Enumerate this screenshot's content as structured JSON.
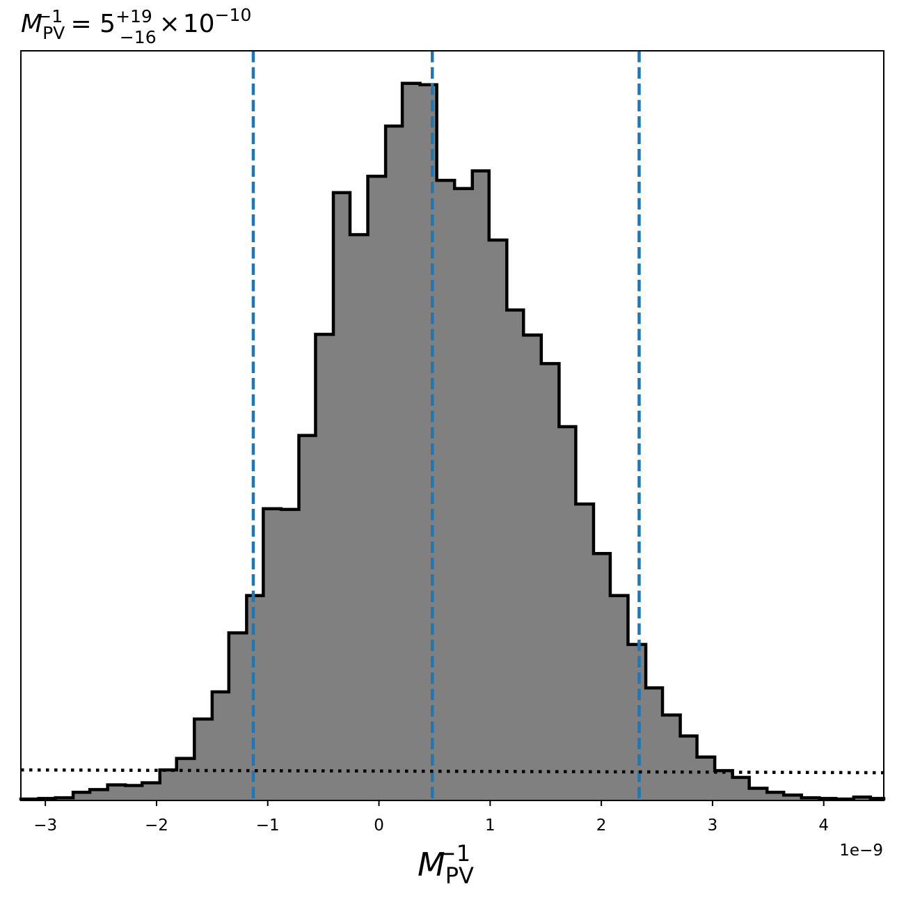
{
  "chart_data": {
    "type": "histogram",
    "title": {
      "lhs_symbol": "M",
      "lhs_sub": "PV",
      "lhs_sup": "−1",
      "equals": " = ",
      "median": "5",
      "err_plus": "+19",
      "err_minus": "−16",
      "times": "×",
      "exp_base": "10",
      "exp_power": "−10"
    },
    "xlabel": {
      "symbol": "M",
      "sub": "PV",
      "sup": "−1"
    },
    "offset_text": "1e−9",
    "x_unit_scale": 1e-09,
    "xlim": [
      -3.22,
      4.54
    ],
    "ylim": [
      0,
      1.105
    ],
    "xticks": [
      -3,
      -2,
      -1,
      0,
      1,
      2,
      3,
      4
    ],
    "xtick_labels": [
      "−3",
      "−2",
      "−1",
      "0",
      "1",
      "2",
      "3",
      "4"
    ],
    "yticks_shown": false,
    "grid": false,
    "colors": {
      "fill": "#808080",
      "step_edge": "#000000",
      "quantile_lines": "#1f77b4",
      "reference_line": "#000000",
      "frame": "#000000"
    },
    "bin_edges": [
      -3.22,
      -3.06,
      -2.91,
      -2.75,
      -2.6,
      -2.44,
      -2.28,
      -2.13,
      -1.97,
      -1.82,
      -1.66,
      -1.5,
      -1.35,
      -1.19,
      -1.04,
      -0.88,
      -0.72,
      -0.57,
      -0.41,
      -0.26,
      -0.1,
      0.06,
      0.21,
      0.37,
      0.52,
      0.68,
      0.84,
      0.99,
      1.15,
      1.3,
      1.46,
      1.62,
      1.77,
      1.93,
      2.08,
      2.24,
      2.4,
      2.55,
      2.71,
      2.86,
      3.02,
      3.18,
      3.33,
      3.49,
      3.64,
      3.8,
      3.96,
      4.11,
      4.27,
      4.42,
      4.54
    ],
    "bin_values": [
      0.002,
      0.003,
      0.004,
      0.012,
      0.016,
      0.023,
      0.022,
      0.026,
      0.045,
      0.062,
      0.12,
      0.16,
      0.247,
      0.302,
      0.43,
      0.429,
      0.538,
      0.687,
      0.896,
      0.834,
      0.92,
      0.994,
      1.057,
      1.055,
      0.914,
      0.902,
      0.928,
      0.826,
      0.723,
      0.686,
      0.644,
      0.551,
      0.437,
      0.364,
      0.302,
      0.23,
      0.166,
      0.126,
      0.095,
      0.064,
      0.044,
      0.034,
      0.018,
      0.012,
      0.008,
      0.004,
      0.003,
      0.002,
      0.005,
      0.003
    ],
    "quantile_lines": [
      -1.13,
      0.48,
      2.34
    ],
    "reference_level": 0.044
  }
}
